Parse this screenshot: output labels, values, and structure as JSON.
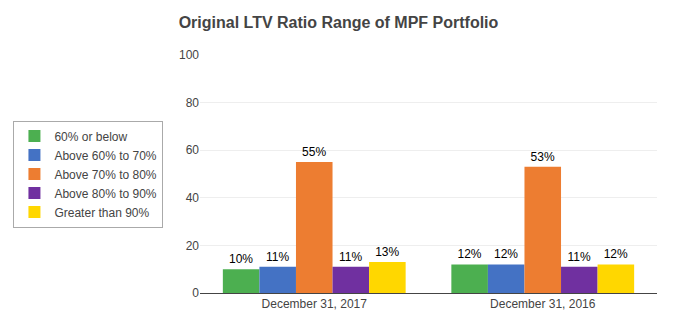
{
  "chart_data": {
    "type": "bar",
    "title": "Original LTV Ratio Range of MPF Portfolio",
    "categories": [
      "December 31, 2017",
      "December 31, 2016"
    ],
    "series": [
      {
        "name": "60% or below",
        "color": "#4CAF50",
        "values": [
          10,
          12
        ],
        "value_labels": [
          "10%",
          "12%"
        ]
      },
      {
        "name": "Above 60% to 70%",
        "color": "#4472C4",
        "values": [
          11,
          12
        ],
        "value_labels": [
          "11%",
          "12%"
        ]
      },
      {
        "name": "Above 70% to 80%",
        "color": "#ED7D31",
        "values": [
          55,
          53
        ],
        "value_labels": [
          "55%",
          "53%"
        ]
      },
      {
        "name": "Above 80% to 90%",
        "color": "#7030A0",
        "values": [
          11,
          11
        ],
        "value_labels": [
          "11%",
          "11%"
        ]
      },
      {
        "name": "Greater than 90%",
        "color": "#FFD700",
        "values": [
          13,
          12
        ],
        "value_labels": [
          "13%",
          "12%"
        ]
      }
    ],
    "ylim": [
      0,
      100
    ],
    "yticks": [
      0,
      20,
      40,
      60,
      80,
      100
    ],
    "grid": true,
    "data_labels": true,
    "legend": "left"
  }
}
